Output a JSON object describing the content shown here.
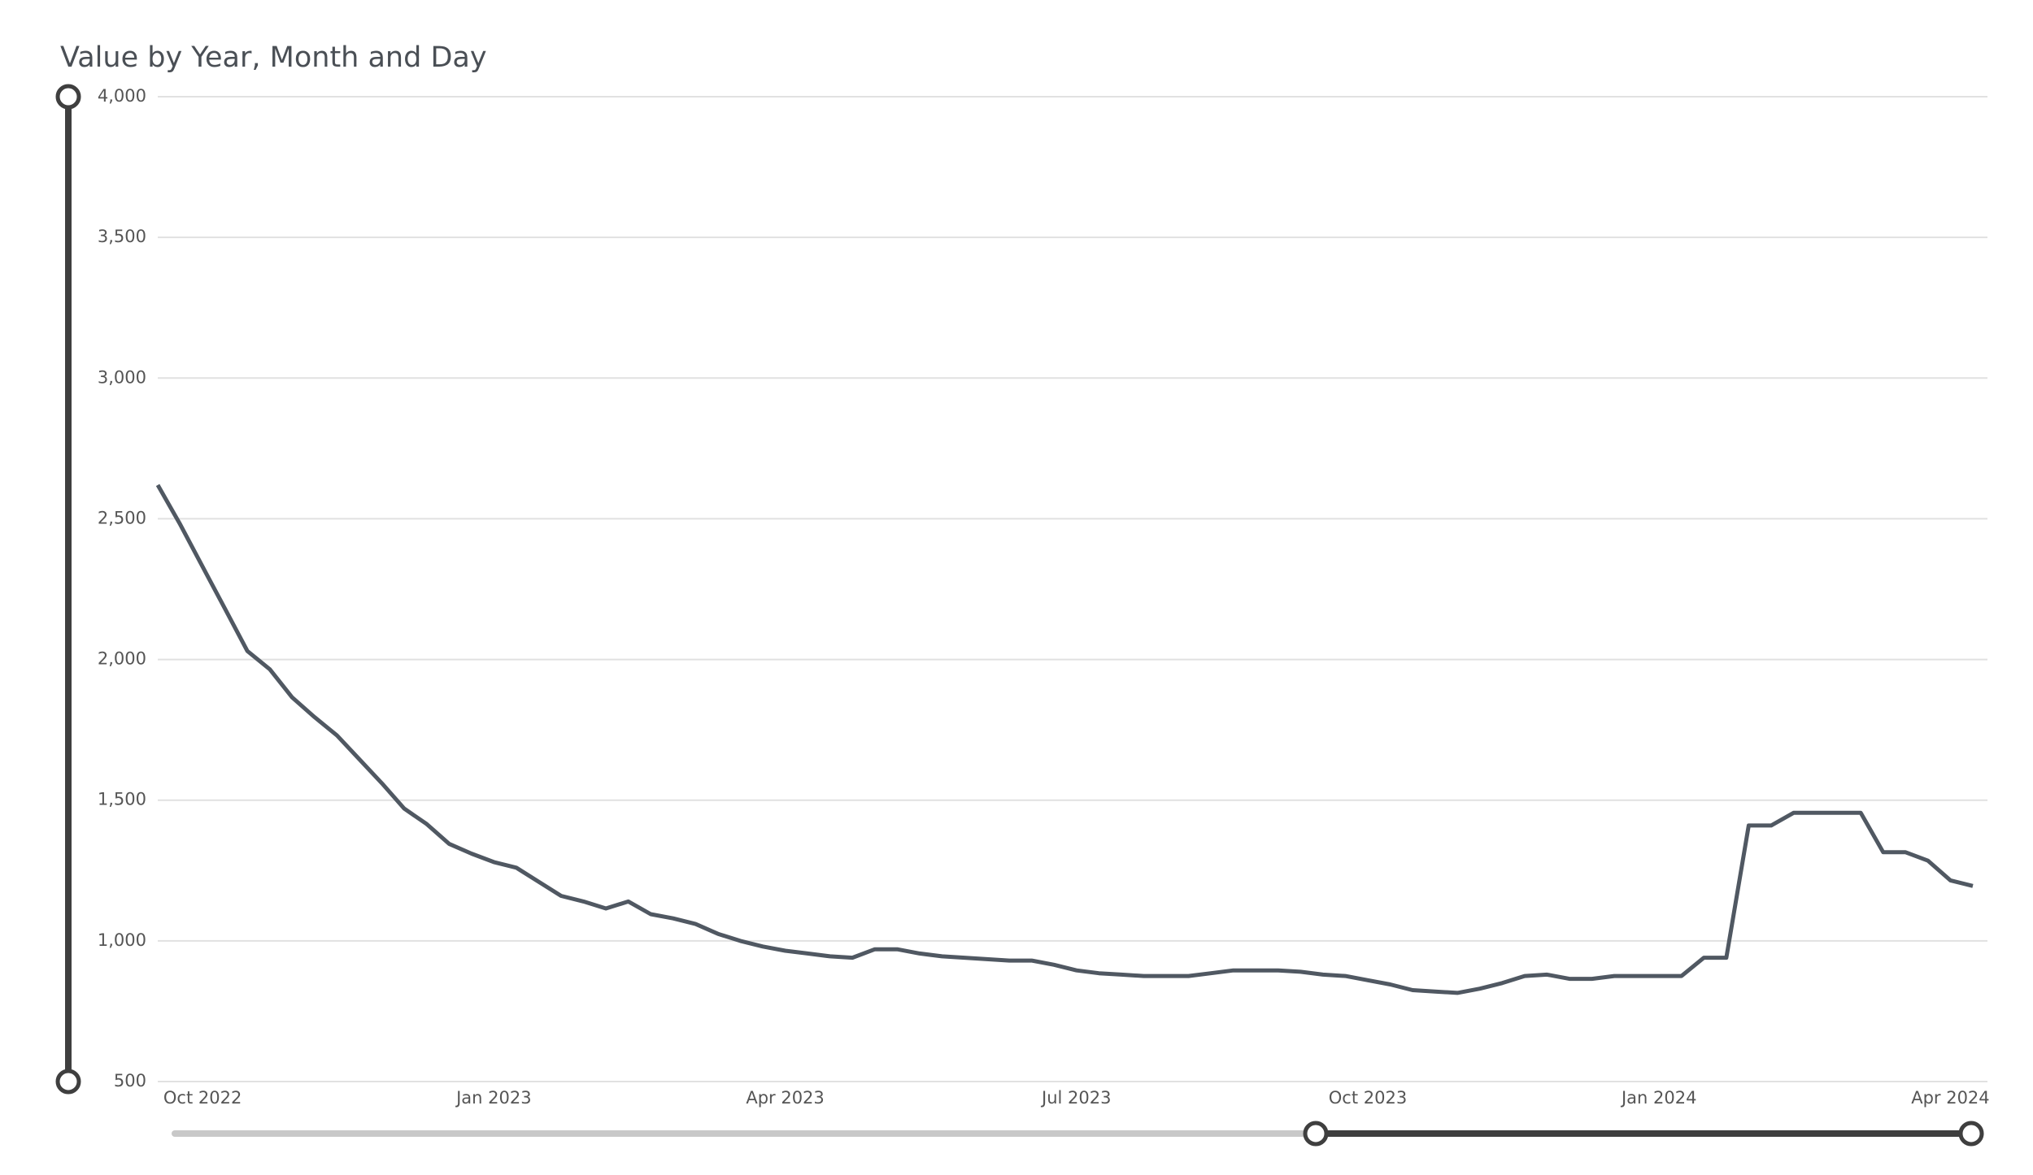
{
  "chart_data": {
    "type": "line",
    "title": "Value by Year, Month and Day",
    "categories": [
      null,
      null,
      "Oct 2022",
      null,
      null,
      null,
      null,
      null,
      null,
      null,
      null,
      null,
      null,
      null,
      null,
      "Jan 2023",
      null,
      null,
      null,
      null,
      null,
      null,
      null,
      null,
      null,
      null,
      null,
      null,
      "Apr 2023",
      null,
      null,
      null,
      null,
      null,
      null,
      null,
      null,
      null,
      null,
      null,
      null,
      "Jul 2023",
      null,
      null,
      null,
      null,
      null,
      null,
      null,
      null,
      null,
      null,
      null,
      null,
      "Oct 2023",
      null,
      null,
      null,
      null,
      null,
      null,
      null,
      null,
      null,
      null,
      null,
      null,
      "Jan 2024",
      null,
      null,
      null,
      null,
      null,
      null,
      null,
      null,
      null,
      null,
      null,
      null,
      "Apr 2024",
      null
    ],
    "series": [
      {
        "color": "#505862",
        "values": [
          2620,
          2480,
          2330,
          2180,
          2030,
          1965,
          1865,
          1795,
          1730,
          1645,
          1560,
          1470,
          1415,
          1345,
          1310,
          1280,
          1260,
          1210,
          1160,
          1140,
          1115,
          1140,
          1095,
          1080,
          1060,
          1025,
          1000,
          980,
          965,
          955,
          945,
          940,
          970,
          970,
          955,
          945,
          940,
          935,
          930,
          930,
          915,
          895,
          885,
          880,
          875,
          875,
          875,
          885,
          895,
          895,
          895,
          890,
          880,
          875,
          860,
          845,
          825,
          820,
          815,
          830,
          850,
          875,
          880,
          865,
          865,
          875,
          875,
          875,
          875,
          940,
          940,
          1410,
          1410,
          1455,
          1455,
          1455,
          1455,
          1315,
          1315,
          1285,
          1215,
          1195
        ]
      }
    ],
    "ylim": [
      500,
      4000
    ],
    "yticks": [
      500,
      {
        "value": 1000,
        "label": "1,000"
      },
      {
        "value": 1500,
        "label": "1,500"
      },
      {
        "value": 2000,
        "label": "2,000"
      },
      {
        "value": 2500,
        "label": "2,500"
      },
      {
        "value": 3000,
        "label": "3,000"
      },
      {
        "value": 3500,
        "label": "3,500"
      },
      {
        "value": 4000,
        "label": "4,000"
      }
    ],
    "grid": true
  }
}
